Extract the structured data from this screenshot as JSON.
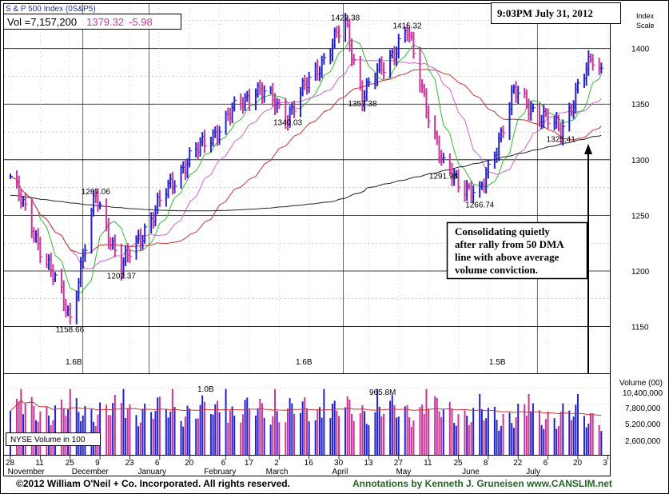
{
  "header": {
    "index_name": "S & P 500 Index",
    "symbol": "(0S&P5)",
    "volume_label": "Vol =7,157,200",
    "last_price": "1379.32",
    "change": "-5.98",
    "timestamp": "9:03PM July 31, 2012"
  },
  "annotation": {
    "lines": [
      "Consolidating quietly",
      "after rally from 50 DMA",
      "line with above average",
      "volume conviction."
    ]
  },
  "volume_panel": {
    "legend": "NYSE Volume in 100",
    "axis_title": "Volume (00)",
    "ticks": [
      "10,400,000",
      "7,800,000",
      "5,200,000",
      "2,600,000"
    ],
    "peak_labels": [
      "1.6B",
      "1.0B",
      "1.6B",
      "965.8M",
      "1.5B"
    ]
  },
  "footer": {
    "copyright": "©2012 William O'Neil + Co. Incorporated. All rights reserved.",
    "annotations_credit": "Annotations by Kenneth J. Gruneisen www.CANSLIM.net"
  },
  "colors": {
    "up": "#2222cc",
    "down": "#cc3399",
    "ma10": "#33bb33",
    "ma21": "#cc66cc",
    "ma50": "#cc3333",
    "ma200": "#222222",
    "header_blue": "#2233aa",
    "header_pink": "#cc3399",
    "credit_green": "#226622"
  },
  "chart_data": {
    "type": "ohlc",
    "y_axis_title": [
      "Index",
      "Scale"
    ],
    "y_ticks": [
      1150,
      1200,
      1250,
      1300,
      1350,
      1400
    ],
    "ylim": [
      1108,
      1440
    ],
    "date_ticks": [
      "28",
      "11",
      "25",
      "9",
      "23",
      "6",
      "20",
      "6",
      "17",
      "2",
      "16",
      "30",
      "13",
      "27",
      "11",
      "25",
      "8",
      "22",
      "6",
      "20",
      "3"
    ],
    "month_labels": [
      "November",
      "December",
      "January",
      "February",
      "March",
      "April",
      "May",
      "June",
      "July"
    ],
    "price_labels": [
      "1158.66",
      "1267.06",
      "1202.37",
      "1340.03",
      "1422.38",
      "1357.38",
      "1415.32",
      "1291.98",
      "1266.74",
      "1325.41"
    ],
    "key_points": [
      {
        "date": "2011-10-28",
        "price": 1285
      },
      {
        "date": "2011-11-25",
        "price": 1158.66
      },
      {
        "date": "2011-12-07",
        "price": 1267.06
      },
      {
        "date": "2011-12-19",
        "price": 1202.37
      },
      {
        "date": "2012-01-15",
        "price": 1290
      },
      {
        "date": "2012-02-20",
        "price": 1365
      },
      {
        "date": "2012-03-06",
        "price": 1340.03
      },
      {
        "date": "2012-04-02",
        "price": 1422.38
      },
      {
        "date": "2012-04-10",
        "price": 1357.38
      },
      {
        "date": "2012-05-01",
        "price": 1415.32
      },
      {
        "date": "2012-05-18",
        "price": 1291.98
      },
      {
        "date": "2012-06-04",
        "price": 1266.74
      },
      {
        "date": "2012-06-20",
        "price": 1360
      },
      {
        "date": "2012-07-12",
        "price": 1325.41
      },
      {
        "date": "2012-07-20",
        "price": 1365
      },
      {
        "date": "2012-07-27",
        "price": 1390
      },
      {
        "date": "2012-07-31",
        "price": 1379.32
      }
    ]
  }
}
